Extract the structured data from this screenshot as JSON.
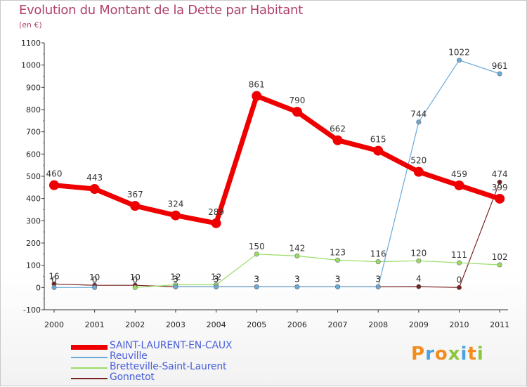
{
  "chart_data": {
    "type": "line",
    "title": "Evolution du Montant de la Dette par Habitant",
    "subtitle": "(en €)",
    "x": [
      "2000",
      "2001",
      "2002",
      "2003",
      "2004",
      "2005",
      "2006",
      "2007",
      "2008",
      "2009",
      "2010",
      "2011"
    ],
    "ylim": [
      -100,
      1100
    ],
    "yticks": [
      "-100",
      "0",
      "100",
      "200",
      "300",
      "400",
      "500",
      "600",
      "700",
      "800",
      "900",
      "1000",
      "1100"
    ],
    "grid": false,
    "legend_position": "bottom-left",
    "series": [
      {
        "name": "Gonnetot",
        "color": "#7a2222",
        "values": [
          16,
          10,
          10,
          3,
          3,
          3,
          3,
          3,
          3,
          4,
          0,
          474
        ],
        "labels": [
          "16",
          "10",
          "10",
          "3",
          "3",
          "3",
          "3",
          "3",
          "3",
          "4",
          "0",
          "474"
        ]
      },
      {
        "name": "Bretteville-Saint-Laurent",
        "color": "#99dd66",
        "values": [
          null,
          null,
          0,
          12,
          12,
          150,
          142,
          123,
          116,
          120,
          111,
          102
        ],
        "labels": [
          null,
          null,
          "0",
          "12",
          "12",
          "150",
          "142",
          "123",
          "116",
          "120",
          "111",
          "102"
        ]
      },
      {
        "name": "Reuville",
        "color": "#6aaad8",
        "values": [
          0,
          0,
          null,
          3,
          3,
          3,
          3,
          3,
          3,
          744,
          1022,
          961
        ],
        "labels": [
          "0",
          "0",
          null,
          "3",
          "3",
          "3",
          "3",
          "3",
          "3",
          "744",
          "1022",
          "961"
        ]
      },
      {
        "name": "SAINT-LAURENT-EN-CAUX",
        "color": "#ee0000",
        "values": [
          460,
          443,
          367,
          324,
          289,
          861,
          790,
          662,
          615,
          520,
          459,
          399
        ],
        "labels": [
          "460",
          "443",
          "367",
          "324",
          "289",
          "861",
          "790",
          "662",
          "615",
          "520",
          "459",
          "399"
        ]
      }
    ]
  },
  "legend": [
    {
      "name": "SAINT-LAURENT-EN-CAUX",
      "color": "#ee0000",
      "thickness": 7
    },
    {
      "name": "Reuville",
      "color": "#6aaad8",
      "thickness": 2
    },
    {
      "name": "Bretteville-Saint-Laurent",
      "color": "#99dd66",
      "thickness": 2
    },
    {
      "name": "Gonnetot",
      "color": "#7a2222",
      "thickness": 2
    }
  ],
  "logo": {
    "letters": [
      "P",
      "r",
      "o",
      "x",
      "i",
      "t",
      "i"
    ],
    "colors": [
      "#f28c1e",
      "#4aa3df",
      "#f28c1e",
      "#8cc63f",
      "#4aa3df",
      "#f28c1e",
      "#8cc63f"
    ]
  }
}
